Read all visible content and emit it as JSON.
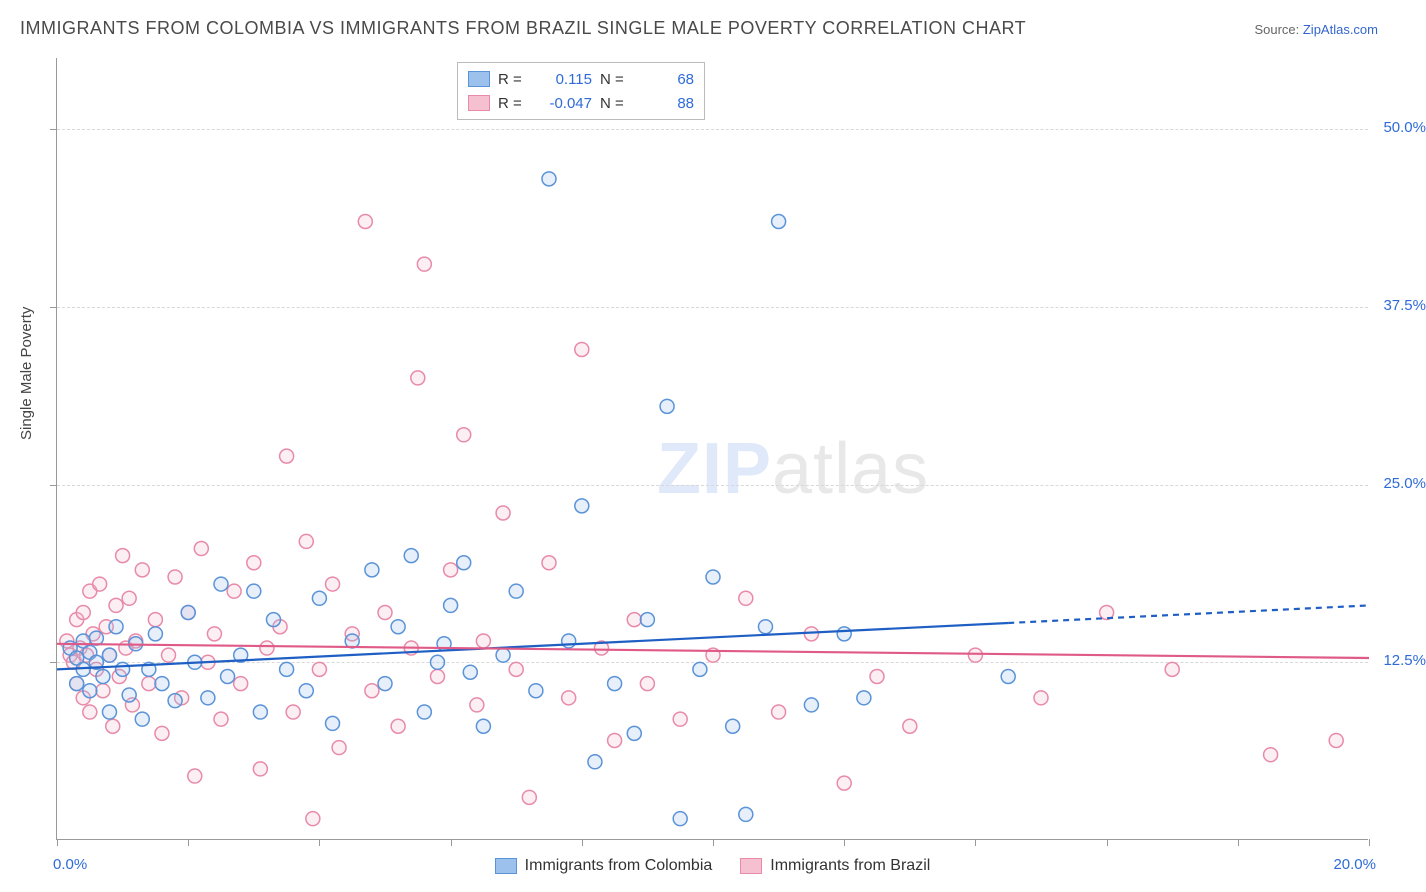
{
  "title": "IMMIGRANTS FROM COLOMBIA VS IMMIGRANTS FROM BRAZIL SINGLE MALE POVERTY CORRELATION CHART",
  "source_label": "Source: ",
  "source_link": "ZipAtlas.com",
  "ylabel": "Single Male Poverty",
  "watermark": "ZIPatlas",
  "chart": {
    "type": "scatter",
    "xlim": [
      0,
      20
    ],
    "ylim": [
      0,
      55
    ],
    "x_ticks": [
      0,
      2,
      4,
      6,
      8,
      10,
      12,
      14,
      16,
      18,
      20
    ],
    "x_tick_labels": {
      "0": "0.0%",
      "20": "20.0%"
    },
    "y_gridlines": [
      12.5,
      25.0,
      37.5,
      50.0
    ],
    "y_tick_labels": [
      "12.5%",
      "25.0%",
      "37.5%",
      "50.0%"
    ],
    "background_color": "#ffffff",
    "grid_color": "#d8d8d8",
    "axis_color": "#999999",
    "marker_radius": 7,
    "marker_stroke_width": 1.5,
    "marker_fill_opacity": 0.25,
    "trend_line_width": 2.2
  },
  "series": [
    {
      "name": "Immigrants from Colombia",
      "color_fill": "#9cc1ec",
      "color_stroke": "#5a93d8",
      "trend_color": "#1f5fc4",
      "R": "0.115",
      "N": "68",
      "trend": {
        "x1": 0,
        "y1": 12.0,
        "x2": 20,
        "y2": 16.5,
        "solid_until_x": 14.5
      },
      "points": [
        [
          0.2,
          13.5
        ],
        [
          0.3,
          12.8
        ],
        [
          0.3,
          11.0
        ],
        [
          0.4,
          14.0
        ],
        [
          0.4,
          12.0
        ],
        [
          0.5,
          13.2
        ],
        [
          0.5,
          10.5
        ],
        [
          0.6,
          12.5
        ],
        [
          0.6,
          14.2
        ],
        [
          0.7,
          11.5
        ],
        [
          0.8,
          13.0
        ],
        [
          0.8,
          9.0
        ],
        [
          0.9,
          15.0
        ],
        [
          1.0,
          12.0
        ],
        [
          1.1,
          10.2
        ],
        [
          1.2,
          13.8
        ],
        [
          1.3,
          8.5
        ],
        [
          1.4,
          12.0
        ],
        [
          1.5,
          14.5
        ],
        [
          1.6,
          11.0
        ],
        [
          1.8,
          9.8
        ],
        [
          2.0,
          16.0
        ],
        [
          2.1,
          12.5
        ],
        [
          2.3,
          10.0
        ],
        [
          2.5,
          18.0
        ],
        [
          2.6,
          11.5
        ],
        [
          2.8,
          13.0
        ],
        [
          3.0,
          17.5
        ],
        [
          3.1,
          9.0
        ],
        [
          3.3,
          15.5
        ],
        [
          3.5,
          12.0
        ],
        [
          3.8,
          10.5
        ],
        [
          4.0,
          17.0
        ],
        [
          4.2,
          8.2
        ],
        [
          4.5,
          14.0
        ],
        [
          4.8,
          19.0
        ],
        [
          5.0,
          11.0
        ],
        [
          5.2,
          15.0
        ],
        [
          5.4,
          20.0
        ],
        [
          5.6,
          9.0
        ],
        [
          5.8,
          12.5
        ],
        [
          6.0,
          16.5
        ],
        [
          6.2,
          19.5
        ],
        [
          6.5,
          8.0
        ],
        [
          6.8,
          13.0
        ],
        [
          7.0,
          17.5
        ],
        [
          7.3,
          10.5
        ],
        [
          7.5,
          46.5
        ],
        [
          7.8,
          14.0
        ],
        [
          8.0,
          23.5
        ],
        [
          8.2,
          5.5
        ],
        [
          8.5,
          11.0
        ],
        [
          8.8,
          7.5
        ],
        [
          9.0,
          15.5
        ],
        [
          9.3,
          30.5
        ],
        [
          9.5,
          1.5
        ],
        [
          9.8,
          12.0
        ],
        [
          10.0,
          18.5
        ],
        [
          10.3,
          8.0
        ],
        [
          10.5,
          1.8
        ],
        [
          10.8,
          15.0
        ],
        [
          11.0,
          43.5
        ],
        [
          11.5,
          9.5
        ],
        [
          12.0,
          14.5
        ],
        [
          12.3,
          10.0
        ],
        [
          14.5,
          11.5
        ],
        [
          5.9,
          13.8
        ],
        [
          6.3,
          11.8
        ]
      ]
    },
    {
      "name": "Immigrants from Brazil",
      "color_fill": "#f5c0cf",
      "color_stroke": "#e88aa8",
      "trend_color": "#e05a87",
      "R": "-0.047",
      "N": "88",
      "trend": {
        "x1": 0,
        "y1": 13.8,
        "x2": 20,
        "y2": 12.8,
        "solid_until_x": 20
      },
      "points": [
        [
          0.15,
          14.0
        ],
        [
          0.2,
          13.0
        ],
        [
          0.25,
          12.5
        ],
        [
          0.3,
          15.5
        ],
        [
          0.3,
          11.0
        ],
        [
          0.35,
          13.5
        ],
        [
          0.4,
          16.0
        ],
        [
          0.4,
          10.0
        ],
        [
          0.45,
          13.0
        ],
        [
          0.5,
          17.5
        ],
        [
          0.5,
          9.0
        ],
        [
          0.55,
          14.5
        ],
        [
          0.6,
          12.0
        ],
        [
          0.65,
          18.0
        ],
        [
          0.7,
          10.5
        ],
        [
          0.75,
          15.0
        ],
        [
          0.8,
          13.0
        ],
        [
          0.85,
          8.0
        ],
        [
          0.9,
          16.5
        ],
        [
          0.95,
          11.5
        ],
        [
          1.0,
          20.0
        ],
        [
          1.05,
          13.5
        ],
        [
          1.1,
          17.0
        ],
        [
          1.15,
          9.5
        ],
        [
          1.2,
          14.0
        ],
        [
          1.3,
          19.0
        ],
        [
          1.4,
          11.0
        ],
        [
          1.5,
          15.5
        ],
        [
          1.6,
          7.5
        ],
        [
          1.7,
          13.0
        ],
        [
          1.8,
          18.5
        ],
        [
          1.9,
          10.0
        ],
        [
          2.0,
          16.0
        ],
        [
          2.1,
          4.5
        ],
        [
          2.2,
          20.5
        ],
        [
          2.3,
          12.5
        ],
        [
          2.4,
          14.5
        ],
        [
          2.5,
          8.5
        ],
        [
          2.7,
          17.5
        ],
        [
          2.8,
          11.0
        ],
        [
          3.0,
          19.5
        ],
        [
          3.1,
          5.0
        ],
        [
          3.2,
          13.5
        ],
        [
          3.4,
          15.0
        ],
        [
          3.5,
          27.0
        ],
        [
          3.6,
          9.0
        ],
        [
          3.8,
          21.0
        ],
        [
          4.0,
          12.0
        ],
        [
          4.2,
          18.0
        ],
        [
          4.3,
          6.5
        ],
        [
          4.5,
          14.5
        ],
        [
          4.7,
          43.5
        ],
        [
          4.8,
          10.5
        ],
        [
          5.0,
          16.0
        ],
        [
          5.2,
          8.0
        ],
        [
          5.4,
          13.5
        ],
        [
          5.5,
          32.5
        ],
        [
          5.6,
          40.5
        ],
        [
          5.8,
          11.5
        ],
        [
          6.0,
          19.0
        ],
        [
          6.2,
          28.5
        ],
        [
          6.4,
          9.5
        ],
        [
          6.5,
          14.0
        ],
        [
          6.8,
          23.0
        ],
        [
          7.0,
          12.0
        ],
        [
          7.2,
          3.0
        ],
        [
          7.5,
          19.5
        ],
        [
          7.8,
          10.0
        ],
        [
          8.0,
          34.5
        ],
        [
          8.3,
          13.5
        ],
        [
          8.5,
          7.0
        ],
        [
          8.8,
          15.5
        ],
        [
          9.0,
          11.0
        ],
        [
          9.5,
          8.5
        ],
        [
          10.0,
          13.0
        ],
        [
          10.5,
          17.0
        ],
        [
          11.0,
          9.0
        ],
        [
          11.5,
          14.5
        ],
        [
          12.0,
          4.0
        ],
        [
          12.5,
          11.5
        ],
        [
          13.0,
          8.0
        ],
        [
          14.0,
          13.0
        ],
        [
          15.0,
          10.0
        ],
        [
          16.0,
          16.0
        ],
        [
          17.0,
          12.0
        ],
        [
          18.5,
          6.0
        ],
        [
          19.5,
          7.0
        ],
        [
          3.9,
          1.5
        ]
      ]
    }
  ],
  "legend_top": {
    "R_label": "R =",
    "N_label": "N ="
  }
}
